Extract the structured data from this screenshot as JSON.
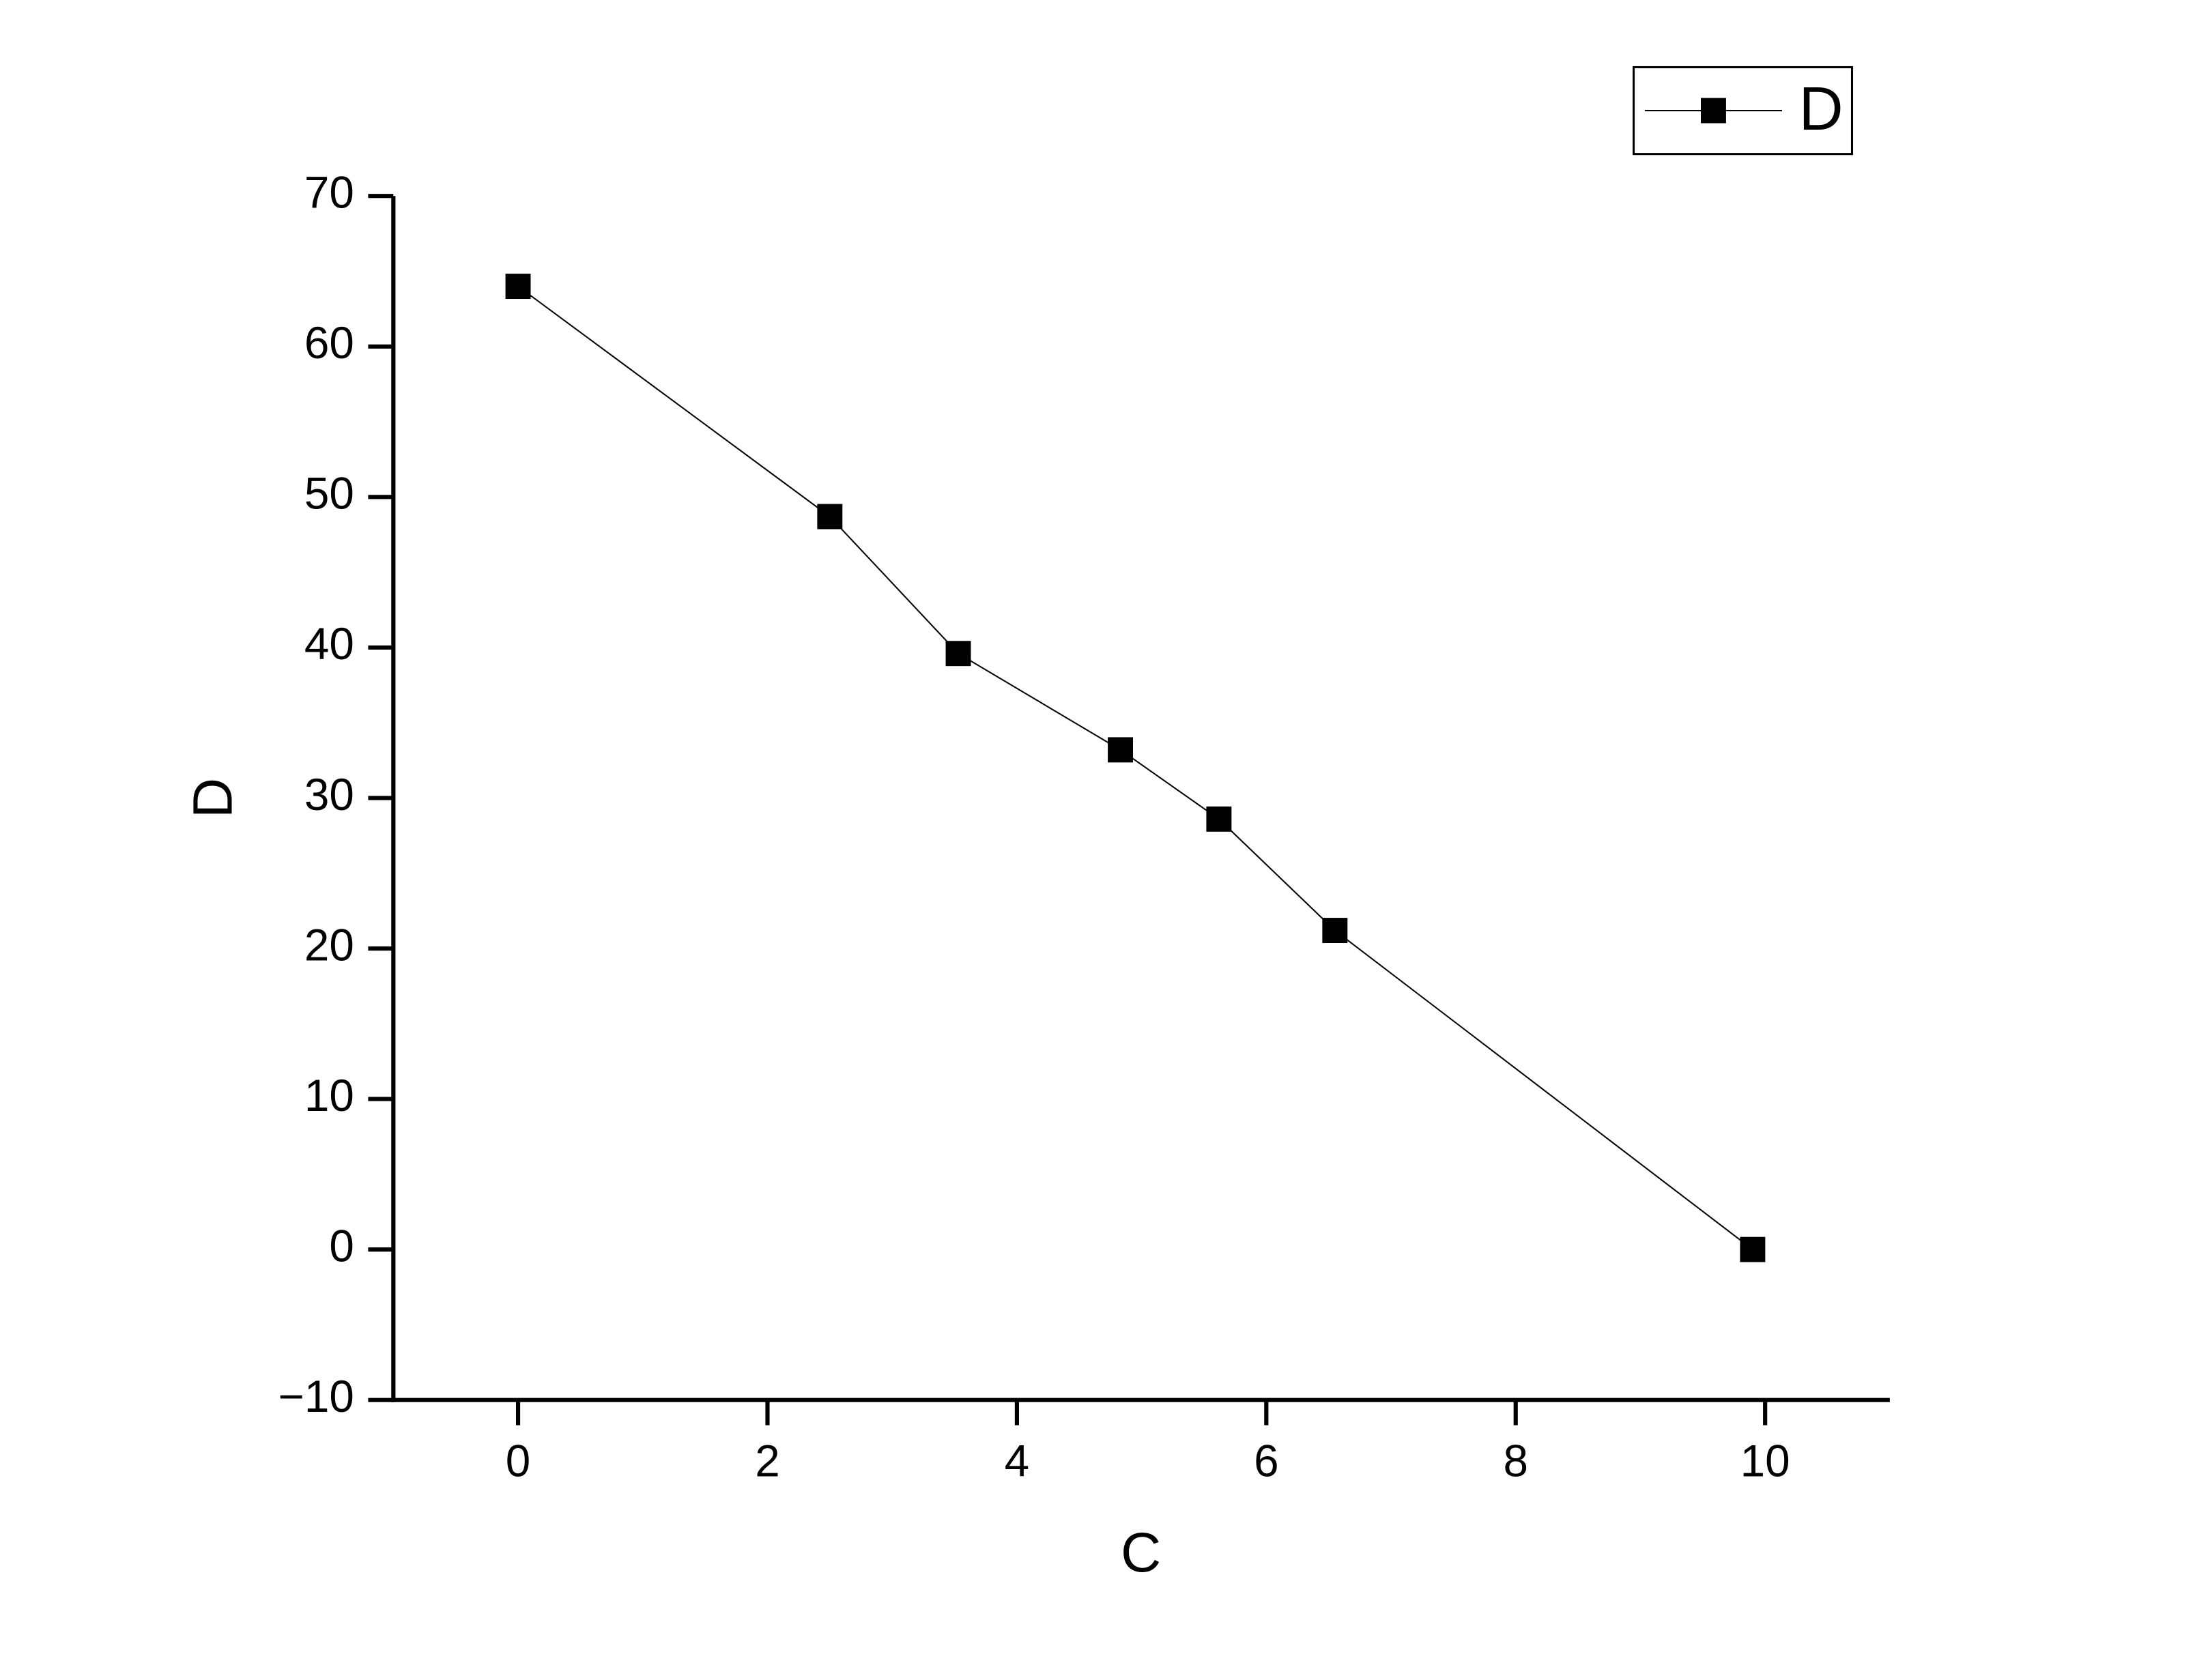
{
  "chart_data": {
    "type": "line",
    "x_label": "C",
    "y_label": "D",
    "series": [
      {
        "name": "D",
        "color": "#000000",
        "x": [
          0,
          2.5,
          3.53,
          4.83,
          5.62,
          6.55,
          9.9
        ],
        "values": [
          64,
          48.7,
          39.6,
          33.2,
          28.6,
          21.2,
          0
        ]
      }
    ],
    "xlim": [
      -1,
      11
    ],
    "xticks": [
      0,
      2,
      4,
      6,
      8,
      10
    ],
    "ylim": [
      -10,
      70
    ],
    "yticks": [
      {
        "value": -10,
        "label": "−10"
      },
      0,
      10,
      20,
      30,
      40,
      50,
      60,
      70
    ],
    "legend": "top-right",
    "grid": false
  }
}
